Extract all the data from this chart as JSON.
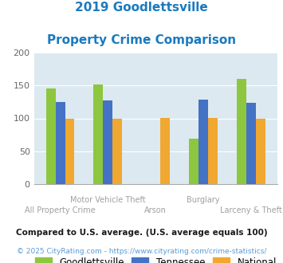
{
  "title_line1": "2019 Goodlettsville",
  "title_line2": "Property Crime Comparison",
  "title_color": "#1a7abf",
  "categories": [
    "All Property Crime",
    "Motor Vehicle Theft",
    "Arson",
    "Burglary",
    "Larceny & Theft"
  ],
  "x_labels_top": [
    "",
    "Motor Vehicle Theft",
    "",
    "Burglary",
    ""
  ],
  "x_labels_bottom": [
    "All Property Crime",
    "",
    "Arson",
    "",
    "Larceny & Theft"
  ],
  "goodlettsville": [
    146,
    152,
    null,
    69,
    160
  ],
  "tennessee": [
    125,
    127,
    null,
    128,
    124
  ],
  "national": [
    100,
    100,
    101,
    101,
    100
  ],
  "colors": {
    "goodlettsville": "#8dc63f",
    "tennessee": "#4472c4",
    "national": "#f0a830"
  },
  "ylim": [
    0,
    200
  ],
  "yticks": [
    0,
    50,
    100,
    150,
    200
  ],
  "background_color": "#dce9f0",
  "legend_labels": [
    "Goodlettsville",
    "Tennessee",
    "National"
  ],
  "footnote1": "Compared to U.S. average. (U.S. average equals 100)",
  "footnote2": "© 2025 CityRating.com - https://www.cityrating.com/crime-statistics/",
  "footnote1_color": "#1a1a1a",
  "footnote2_color": "#5b9bd5",
  "label_color": "#a0a0a0"
}
